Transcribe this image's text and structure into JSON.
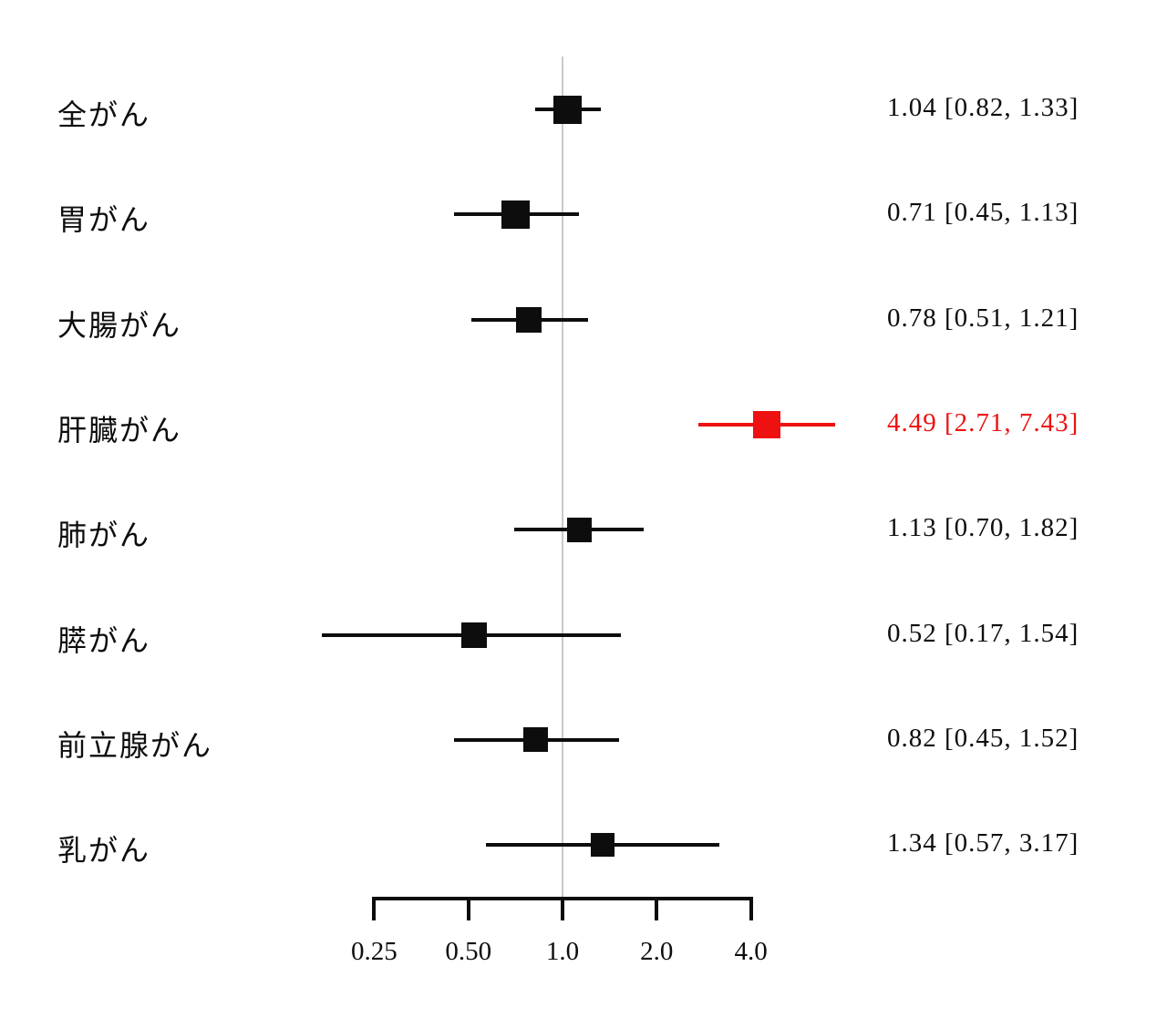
{
  "chart_data": {
    "type": "scatter",
    "subtype": "forest-plot",
    "title": "",
    "xlabel": "",
    "ylabel": "",
    "x_scale": "log2",
    "x_axis_ticks": [
      "0.25",
      "0.50",
      "1.0",
      "2.0",
      "4.0"
    ],
    "x_axis_tick_values": [
      0.25,
      0.5,
      1.0,
      2.0,
      4.0
    ],
    "reference_line_value": 1.0,
    "grid": "off",
    "legend": "none",
    "rows": [
      {
        "label": "全がん",
        "estimate": 1.04,
        "ci_lower": 0.82,
        "ci_upper": 1.33,
        "text": "1.04 [0.82, 1.33]",
        "color": "#0d0d0d",
        "marker_size": 31,
        "highlighted": false
      },
      {
        "label": "胃がん",
        "estimate": 0.71,
        "ci_lower": 0.45,
        "ci_upper": 1.13,
        "text": "0.71 [0.45, 1.13]",
        "color": "#0d0d0d",
        "marker_size": 31,
        "highlighted": false
      },
      {
        "label": "大腸がん",
        "estimate": 0.78,
        "ci_lower": 0.51,
        "ci_upper": 1.21,
        "text": "0.78 [0.51, 1.21]",
        "color": "#0d0d0d",
        "marker_size": 28,
        "highlighted": false
      },
      {
        "label": "肝臓がん",
        "estimate": 4.49,
        "ci_lower": 2.71,
        "ci_upper": 7.43,
        "text": "4.49 [2.71, 7.43]",
        "color": "#ee1111",
        "marker_size": 30,
        "highlighted": true
      },
      {
        "label": "肺がん",
        "estimate": 1.13,
        "ci_lower": 0.7,
        "ci_upper": 1.82,
        "text": "1.13 [0.70, 1.82]",
        "color": "#0d0d0d",
        "marker_size": 27,
        "highlighted": false
      },
      {
        "label": "膵がん",
        "estimate": 0.52,
        "ci_lower": 0.17,
        "ci_upper": 1.54,
        "text": "0.52 [0.17, 1.54]",
        "color": "#0d0d0d",
        "marker_size": 28,
        "highlighted": false
      },
      {
        "label": "前立腺がん",
        "estimate": 0.82,
        "ci_lower": 0.45,
        "ci_upper": 1.52,
        "text": "0.82 [0.45, 1.52]",
        "color": "#0d0d0d",
        "marker_size": 27,
        "highlighted": false
      },
      {
        "label": "乳がん",
        "estimate": 1.34,
        "ci_lower": 0.57,
        "ci_upper": 3.17,
        "text": "1.34 [0.57, 3.17]",
        "color": "#0d0d0d",
        "marker_size": 26,
        "highlighted": false
      }
    ],
    "colors": {
      "default": "#0d0d0d",
      "highlight": "#ee1111",
      "reference_line": "#c9c9c9",
      "background": "#ffffff"
    }
  }
}
